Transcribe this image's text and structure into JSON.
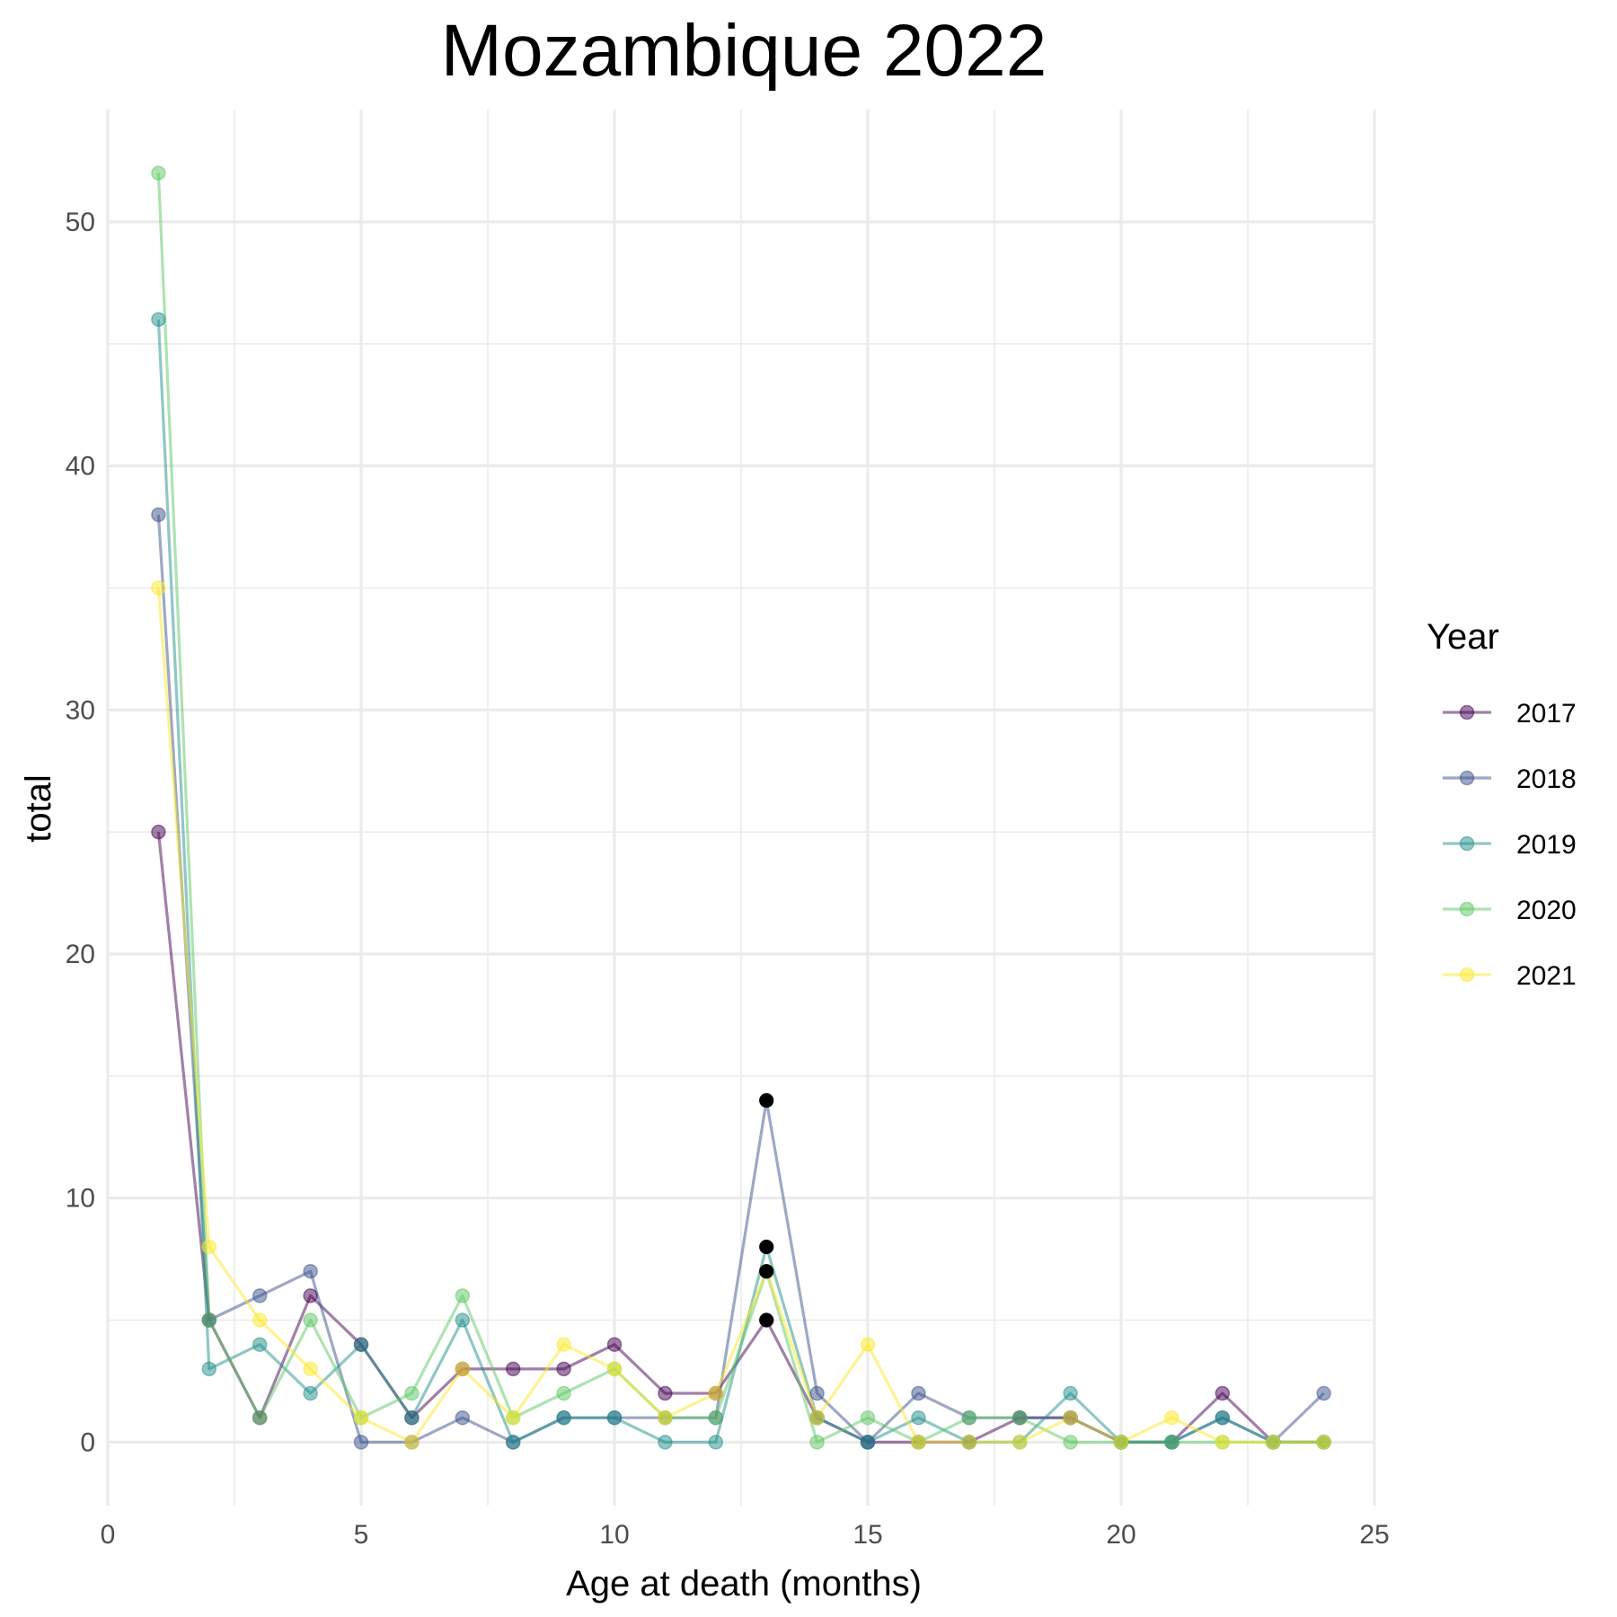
{
  "chart_data": {
    "type": "line",
    "title": "Mozambique 2022",
    "xlabel": "Age at death (months)",
    "ylabel": "total",
    "xlim": [
      0,
      25
    ],
    "ylim": [
      -2.6,
      54.6
    ],
    "x_ticks": [
      0,
      5,
      10,
      15,
      20,
      25
    ],
    "y_ticks": [
      0,
      10,
      20,
      30,
      40,
      50
    ],
    "grid": true,
    "legend": {
      "title": "Year",
      "placement": "right"
    },
    "x": [
      1,
      2,
      3,
      4,
      5,
      6,
      7,
      8,
      9,
      10,
      11,
      12,
      13,
      14,
      15,
      16,
      17,
      18,
      19,
      20,
      21,
      22,
      23,
      24
    ],
    "series": [
      {
        "name": "2017",
        "color": "#440154",
        "values": [
          25,
          5,
          1,
          6,
          4,
          1,
          3,
          3,
          3,
          4,
          2,
          2,
          5,
          1,
          0,
          0,
          0,
          1,
          1,
          0,
          0,
          2,
          0,
          0
        ]
      },
      {
        "name": "2018",
        "color": "#3B528B",
        "values": [
          38,
          5,
          6,
          7,
          0,
          0,
          1,
          0,
          1,
          1,
          1,
          1,
          14,
          2,
          0,
          2,
          1,
          1,
          1,
          0,
          0,
          1,
          0,
          2
        ]
      },
      {
        "name": "2019",
        "color": "#21908C",
        "values": [
          46,
          3,
          4,
          2,
          4,
          1,
          5,
          0,
          1,
          1,
          0,
          0,
          8,
          1,
          0,
          1,
          0,
          0,
          2,
          0,
          0,
          1,
          0,
          0
        ]
      },
      {
        "name": "2020",
        "color": "#5DC863",
        "values": [
          52,
          5,
          1,
          5,
          1,
          2,
          6,
          1,
          2,
          3,
          1,
          1,
          7,
          0,
          1,
          0,
          1,
          1,
          0,
          0,
          0,
          0,
          0,
          0
        ]
      },
      {
        "name": "2021",
        "color": "#FDE725",
        "values": [
          35,
          8,
          5,
          3,
          1,
          0,
          3,
          1,
          4,
          3,
          1,
          2,
          7,
          1,
          4,
          0,
          0,
          0,
          1,
          0,
          1,
          0,
          0,
          0
        ]
      }
    ],
    "highlighted_x": 13,
    "highlight_color": "#000000"
  }
}
